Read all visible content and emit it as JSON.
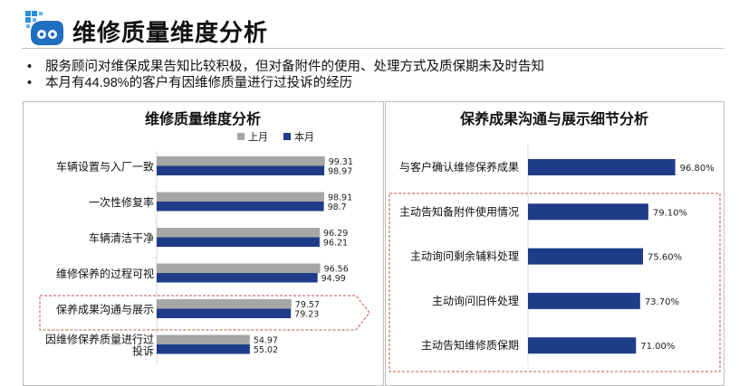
{
  "header": {
    "title": "维修质量维度分析"
  },
  "bullets": [
    "服务顾问对维保成果告知比较积极，但对备附件的使用、处理方式及质保期未及时告知",
    "本月有44.98%的客户有因维修质量进行过投诉的经历"
  ],
  "colors": {
    "last_month": "#a6a6a6",
    "this_month": "#1f3c88",
    "highlight_border": "#c0504d"
  },
  "chart_data": [
    {
      "type": "bar",
      "orientation": "horizontal",
      "title": "维修质量维度分析",
      "categories": [
        [
          "车辆设置与入厂一致"
        ],
        [
          "一次性修复率"
        ],
        [
          "车辆清洁干净"
        ],
        [
          "维修保养的过程可视"
        ],
        [
          "保养成果沟通与展示"
        ],
        [
          "因维修保养质量进行过",
          "投诉"
        ]
      ],
      "series": [
        {
          "name": "上月",
          "values": [
            99.31,
            98.91,
            96.29,
            96.56,
            79.57,
            54.97
          ],
          "labels": [
            "99.31",
            "98.91",
            "96.29",
            "96.56",
            "79.57",
            "54.97"
          ]
        },
        {
          "name": "本月",
          "values": [
            98.97,
            98.7,
            96.21,
            94.99,
            79.23,
            55.02
          ],
          "labels": [
            "98.97",
            "98.7",
            "96.21",
            "94.99",
            "79.23",
            "55.02"
          ]
        }
      ],
      "legend": "top-right",
      "highlight_category": "保养成果沟通与展示"
    },
    {
      "type": "bar",
      "orientation": "horizontal",
      "title": "保养成果沟通与展示细节分析",
      "categories": [
        "与客户确认维修保养成果",
        "主动告知备附件使用情况",
        "主动询问剩余辅料处理",
        "主动询问旧件处理",
        "主动告知维修质保期"
      ],
      "values": [
        96.8,
        79.1,
        75.6,
        73.7,
        71.0
      ],
      "labels": [
        "96.80%",
        "79.10%",
        "75.60%",
        "73.70%",
        "71.00%"
      ],
      "highlight_categories": [
        "主动告知备附件使用情况",
        "主动询问剩余辅料处理",
        "主动询问旧件处理",
        "主动告知维修质保期"
      ]
    }
  ]
}
